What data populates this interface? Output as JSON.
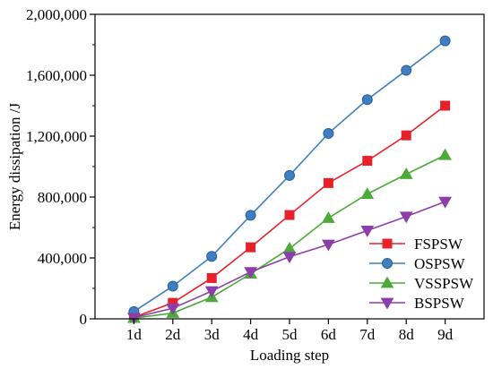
{
  "chart_data": {
    "type": "line",
    "xlabel": "Loading step",
    "ylabel": "Energy dissipation /J",
    "categories": [
      "1d",
      "2d",
      "3d",
      "4d",
      "5d",
      "6d",
      "7d",
      "8d",
      "9d"
    ],
    "ylim": [
      0,
      2000000
    ],
    "yticks": [
      0,
      400000,
      800000,
      1200000,
      1600000,
      2000000
    ],
    "ytick_labels": [
      "0",
      "400,000",
      "800,000",
      "1,200,000",
      "1,600,000",
      "2,000,000"
    ],
    "grid": false,
    "legend_position": "bottom-right",
    "series": [
      {
        "name": "FSPSW",
        "color": "#e8202a",
        "marker": "square",
        "values": [
          10000,
          105000,
          268000,
          470000,
          682000,
          892000,
          1038000,
          1205000,
          1400000
        ]
      },
      {
        "name": "OSPSW",
        "color": "#3f7fc1",
        "marker": "circle",
        "values": [
          48000,
          215000,
          410000,
          680000,
          942000,
          1218000,
          1440000,
          1632000,
          1826000
        ]
      },
      {
        "name": "VSSPSW",
        "color": "#4daa3a",
        "marker": "triangle-up",
        "values": [
          5000,
          38000,
          142000,
          296000,
          462000,
          662000,
          820000,
          950000,
          1075000
        ]
      },
      {
        "name": "BSPSW",
        "color": "#8b3fa8",
        "marker": "triangle-down",
        "values": [
          8000,
          70000,
          182000,
          308000,
          408000,
          488000,
          580000,
          672000,
          770000
        ]
      }
    ]
  }
}
